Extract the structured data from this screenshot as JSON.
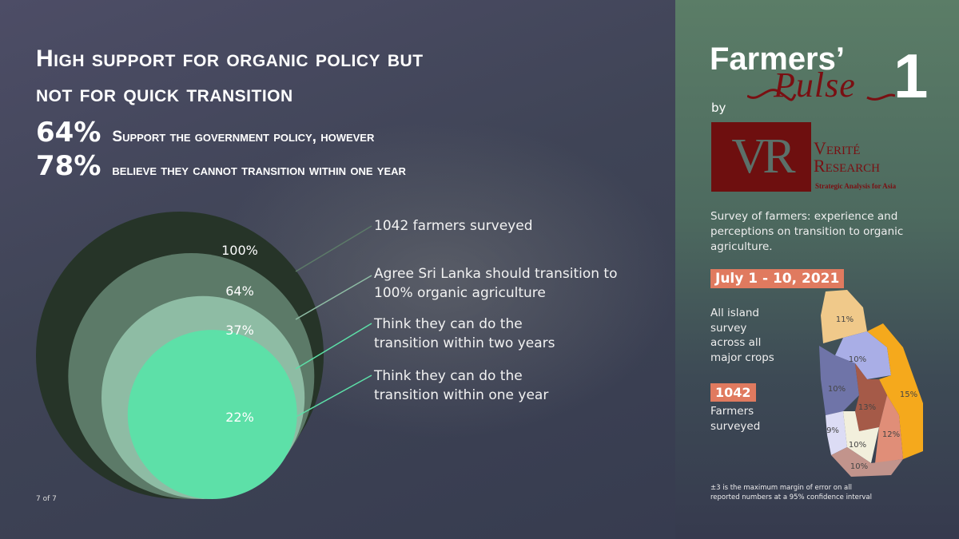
{
  "title": [
    "High support for organic policy but",
    "not for quick transition"
  ],
  "stats": [
    {
      "value": "64%",
      "text": "Support the government policy, however"
    },
    {
      "value": "78%",
      "text": "believe they cannot transition within one year"
    }
  ],
  "chart_data": {
    "type": "nested-circles",
    "title": "",
    "values": [
      100,
      64,
      37,
      22
    ],
    "labels": [
      "100%",
      "64%",
      "37%",
      "22%"
    ],
    "descriptions": [
      "1042 farmers surveyed",
      "Agree Sri Lanka should transition to 100% organic agriculture",
      "Think they can do the transition within two years",
      "Think they can do the transition within one year"
    ],
    "colors": [
      "#263428",
      "#5c7a68",
      "#8ebca4",
      "#5de0a8"
    ]
  },
  "page": "7 of 7",
  "brand": {
    "name": "Farmers’",
    "script": "Pulse",
    "number": "1",
    "by": "by",
    "logo": "VR",
    "org_line1": "Verité",
    "org_line2": "Research",
    "tagline": "Strategic Analysis for Asia"
  },
  "description": "Survey of farmers: experience and perceptions on transition to organic agriculture.",
  "date": "July 1 - 10, 2021",
  "coverage": [
    "All island",
    "survey",
    "across all",
    "major crops"
  ],
  "count": "1042",
  "count_label": [
    "Farmers",
    "surveyed"
  ],
  "map": {
    "regions": [
      {
        "label": "11%",
        "color": "#f0c98a"
      },
      {
        "label": "10%",
        "color": "#a9aee6"
      },
      {
        "label": "10%",
        "color": "#6f74a8"
      },
      {
        "label": "15%",
        "color": "#f5a91c"
      },
      {
        "label": "13%",
        "color": "#a55a48"
      },
      {
        "label": "9%",
        "color": "#dcdcf5"
      },
      {
        "label": "10%",
        "color": "#f2efdc"
      },
      {
        "label": "12%",
        "color": "#e08e78"
      },
      {
        "label": "10%",
        "color": "#c2948c"
      }
    ]
  },
  "footnote": [
    "±3 is the maximum margin of error on all",
    "reported numbers at a 95% confidence interval"
  ],
  "accent": "#e07a5f"
}
